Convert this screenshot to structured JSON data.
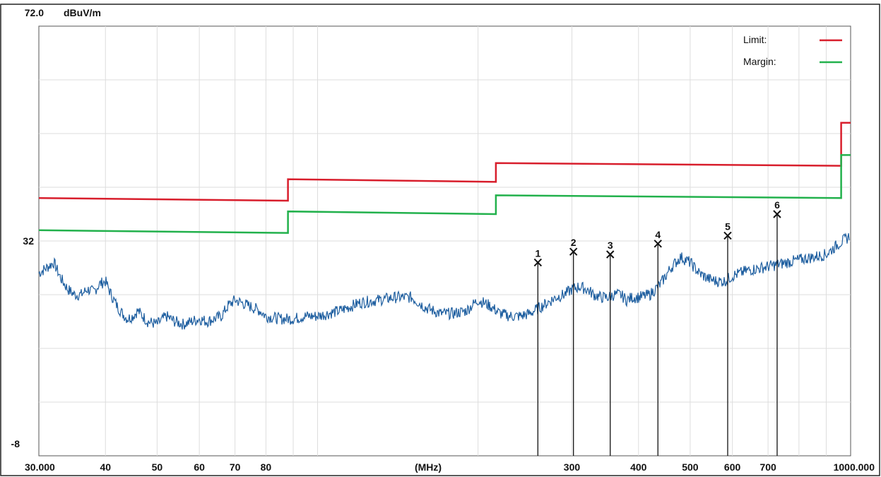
{
  "chart_data": {
    "type": "line",
    "title": "",
    "ylabel": "dBuV/m",
    "xlabel": "(MHz)",
    "x_scale": "log",
    "xlim": [
      30,
      1000
    ],
    "ylim": [
      -8,
      72
    ],
    "y_tick_labels": [
      "72.0",
      "32",
      "-8"
    ],
    "y_tick_values": [
      72,
      32,
      -8
    ],
    "x_tick_labels": [
      "30.000",
      "40",
      "50",
      "60",
      "70",
      "80",
      "300",
      "400",
      "500",
      "600",
      "700",
      "1000.000"
    ],
    "x_tick_values": [
      30,
      40,
      50,
      60,
      70,
      80,
      300,
      400,
      500,
      600,
      700,
      1000
    ],
    "grid": true,
    "legend_position": "top-right",
    "legend": [
      {
        "label": "Limit:",
        "color": "#d81e2c"
      },
      {
        "label": "Margin:",
        "color": "#22b14c"
      }
    ],
    "series": [
      {
        "name": "Limit:",
        "color": "#d81e2c",
        "x": [
          30,
          88,
          88,
          216,
          216,
          960,
          960,
          1000
        ],
        "y": [
          40,
          39.5,
          43.5,
          43,
          46.5,
          46,
          54,
          54
        ]
      },
      {
        "name": "Margin:",
        "color": "#22b14c",
        "x": [
          30,
          88,
          88,
          216,
          216,
          960,
          960,
          1000
        ],
        "y": [
          34,
          33.5,
          37.5,
          37,
          40.5,
          40,
          48,
          48
        ]
      },
      {
        "color": "#1f5fa0",
        "x": [
          30,
          31,
          32,
          33,
          34,
          35,
          36,
          37,
          38,
          39,
          40,
          41,
          42,
          43,
          44,
          45,
          46,
          48,
          50,
          52,
          54,
          56,
          58,
          60,
          62,
          64,
          66,
          68,
          70,
          72,
          74,
          76,
          78,
          80,
          85,
          90,
          95,
          100,
          110,
          120,
          130,
          140,
          150,
          160,
          170,
          180,
          190,
          200,
          210,
          220,
          230,
          240,
          250,
          260,
          270,
          280,
          290,
          300,
          310,
          320,
          330,
          340,
          350,
          360,
          370,
          380,
          390,
          400,
          420,
          440,
          460,
          480,
          500,
          520,
          540,
          560,
          580,
          600,
          640,
          680,
          720,
          760,
          800,
          850,
          900,
          950,
          1000
        ],
        "y": [
          26,
          27,
          28,
          25,
          23,
          22,
          22,
          23,
          22.5,
          24,
          24.5,
          22,
          20,
          18.5,
          17.5,
          18,
          19,
          17,
          16.5,
          18,
          17,
          16.5,
          17,
          17.5,
          17,
          17.5,
          18,
          20,
          21,
          20.5,
          20,
          19.5,
          19,
          18,
          17.5,
          17.5,
          18,
          18,
          19,
          20.5,
          21,
          21.5,
          21.5,
          19.5,
          18.5,
          18.5,
          19,
          21,
          20,
          18.5,
          18,
          18,
          18.5,
          19.5,
          20.5,
          21.5,
          22,
          23,
          23.5,
          23,
          22,
          21.5,
          21.5,
          22,
          22,
          21,
          21.5,
          21.5,
          22,
          24,
          27,
          29,
          28,
          26,
          25,
          24.5,
          24.5,
          25.5,
          26.5,
          27,
          27.5,
          28,
          28.5,
          29,
          29.5,
          31.5,
          33
        ]
      }
    ],
    "markers": [
      {
        "label": "1",
        "x": 259,
        "y": 28
      },
      {
        "label": "2",
        "x": 302,
        "y": 30
      },
      {
        "label": "3",
        "x": 354,
        "y": 29.5
      },
      {
        "label": "4",
        "x": 435,
        "y": 31.5
      },
      {
        "label": "5",
        "x": 588,
        "y": 33
      },
      {
        "label": "6",
        "x": 728,
        "y": 37
      }
    ]
  }
}
